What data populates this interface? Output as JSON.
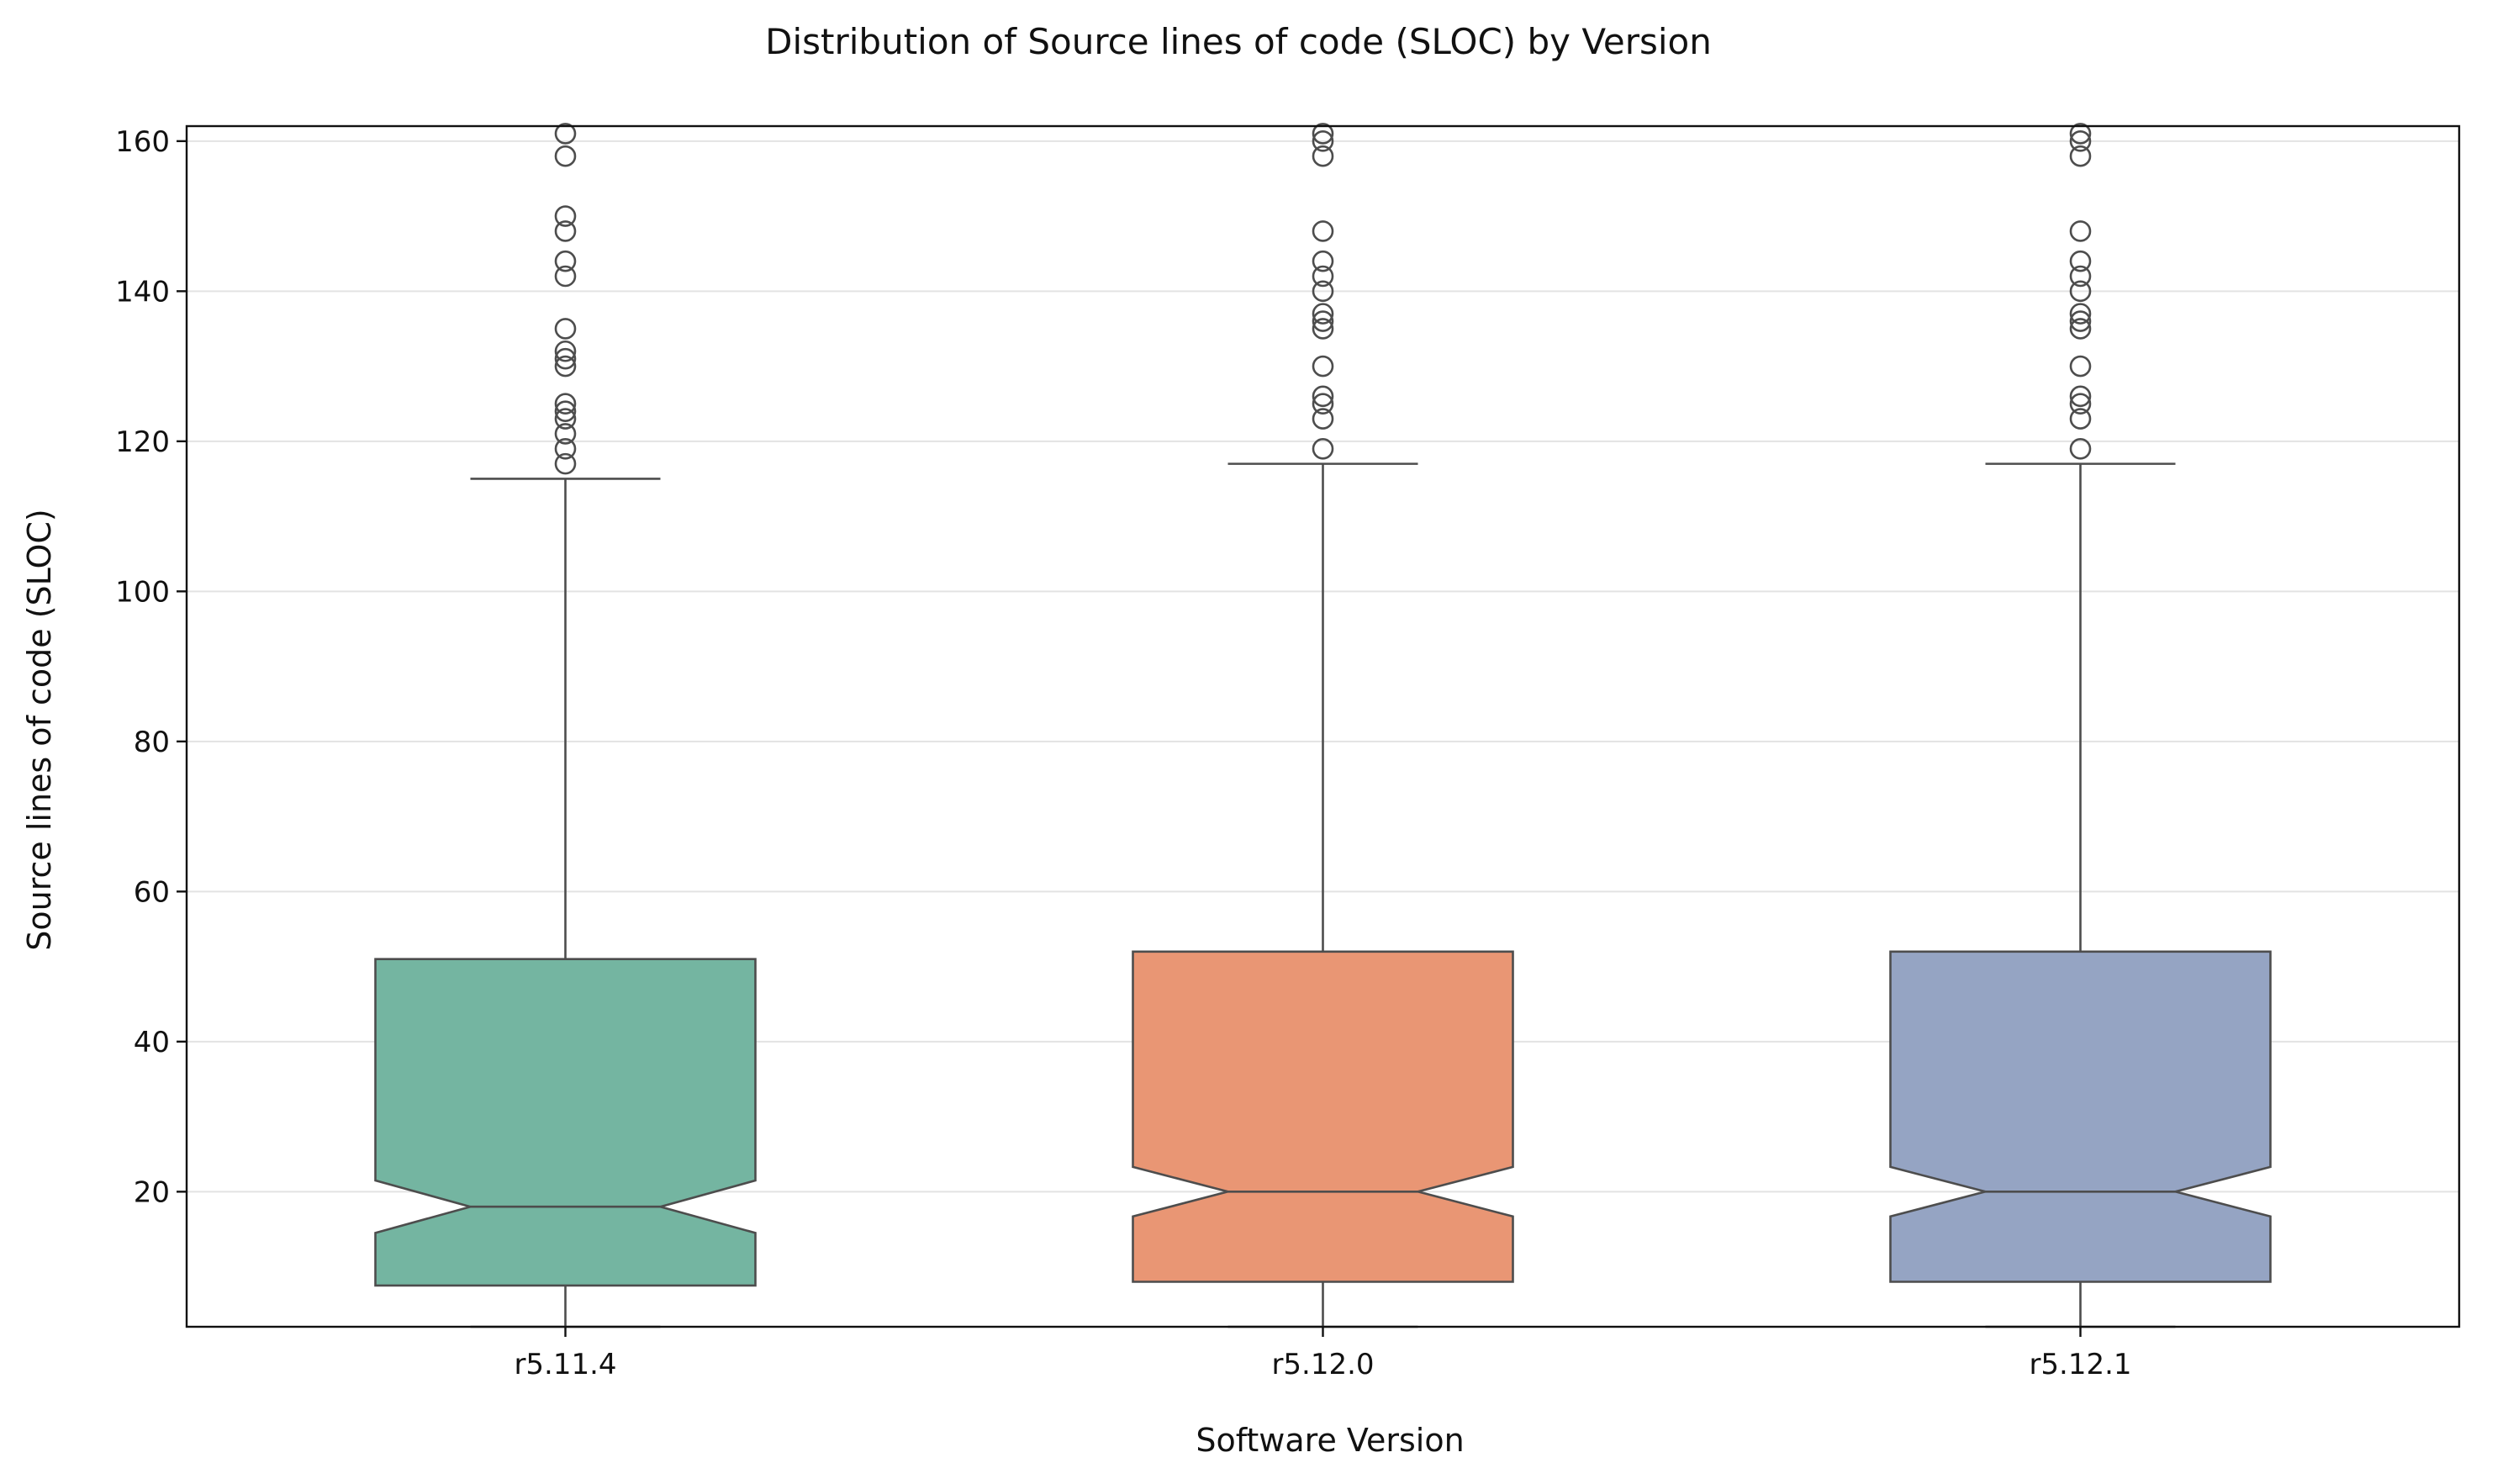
{
  "chart_data": {
    "type": "box",
    "title": "Distribution of Source lines of code (SLOC) by Version",
    "xlabel": "Software Version",
    "ylabel": "Source lines of code (SLOC)",
    "ylim": [
      2,
      162
    ],
    "yticks": [
      20,
      40,
      60,
      80,
      100,
      120,
      140,
      160
    ],
    "grid": "horizontal",
    "notched": true,
    "categories": [
      "r5.11.4",
      "r5.12.0",
      "r5.12.1"
    ],
    "boxes": [
      {
        "category": "r5.11.4",
        "color": "#74b5a1",
        "min": 2,
        "q1": 7.5,
        "median": 18,
        "q3": 51,
        "max": 115,
        "notch_low": 14.5,
        "notch_high": 21.5,
        "outliers": [
          117,
          119,
          121,
          123,
          124,
          125,
          130,
          131,
          132,
          135,
          142,
          144,
          148,
          150,
          158,
          161
        ]
      },
      {
        "category": "r5.12.0",
        "color": "#e99674",
        "min": 2,
        "q1": 8,
        "median": 20,
        "q3": 52,
        "max": 117,
        "notch_low": 16.7,
        "notch_high": 23.3,
        "outliers": [
          119,
          123,
          125,
          126,
          130,
          135,
          136,
          137,
          140,
          142,
          144,
          148,
          158,
          160,
          161
        ]
      },
      {
        "category": "r5.12.1",
        "color": "#95a4c3",
        "min": 2,
        "q1": 8,
        "median": 20,
        "q3": 52,
        "max": 117,
        "notch_low": 16.7,
        "notch_high": 23.3,
        "outliers": [
          119,
          123,
          125,
          126,
          130,
          135,
          136,
          137,
          140,
          142,
          144,
          148,
          158,
          160,
          161
        ]
      }
    ]
  }
}
